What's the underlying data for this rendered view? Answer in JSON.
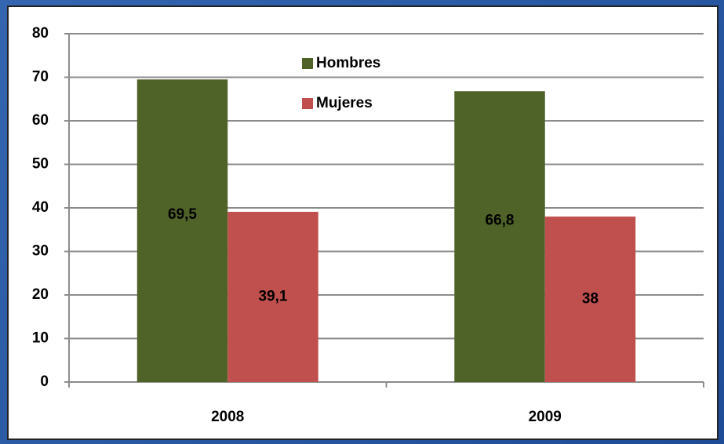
{
  "chart_data": {
    "type": "bar",
    "categories": [
      "2008",
      "2009"
    ],
    "series": [
      {
        "name": "Hombres",
        "color": "#4f6228",
        "values": [
          69.5,
          66.8
        ],
        "value_labels": [
          "69,5",
          "66,8"
        ]
      },
      {
        "name": "Mujeres",
        "color": "#c0504d",
        "values": [
          39.1,
          38
        ],
        "value_labels": [
          "39,1",
          "38"
        ]
      }
    ],
    "ylim": [
      0,
      80
    ],
    "yticks": [
      0,
      10,
      20,
      30,
      40,
      50,
      60,
      70,
      80
    ],
    "grid": true,
    "legend": "top"
  }
}
